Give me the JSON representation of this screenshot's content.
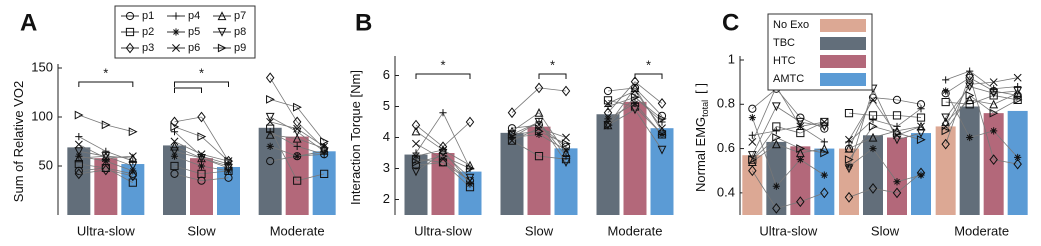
{
  "participants": [
    {
      "name": "p1",
      "marker": "o"
    },
    {
      "name": "p2",
      "marker": "s"
    },
    {
      "name": "p3",
      "marker": "d"
    },
    {
      "name": "p4",
      "marker": "+"
    },
    {
      "name": "p5",
      "marker": "*"
    },
    {
      "name": "p6",
      "marker": "x"
    },
    {
      "name": "p7",
      "marker": "^"
    },
    {
      "name": "p8",
      "marker": "v"
    },
    {
      "name": "p9",
      "marker": ">"
    }
  ],
  "chart_data": [
    {
      "type": "bar",
      "panel": "A",
      "ylabel": "Sum of Relative VO2",
      "categories": [
        "Ultra-slow",
        "Slow",
        "Moderate"
      ],
      "series": [
        {
          "color": "#626e7a",
          "values": [
            69,
            71,
            89
          ]
        },
        {
          "color": "#b3687a",
          "values": [
            58,
            58,
            80
          ]
        },
        {
          "color": "#5b9bd5",
          "values": [
            52,
            49,
            65
          ]
        }
      ],
      "points": [
        [
          45,
          48,
          42,
          42,
          35,
          38,
          55,
          60,
          62
        ],
        [
          52,
          48,
          33,
          50,
          42,
          45,
          88,
          35,
          42
        ],
        [
          42,
          46,
          40,
          95,
          100,
          55,
          140,
          95,
          68
        ],
        [
          80,
          65,
          55,
          85,
          60,
          52,
          85,
          70,
          62
        ],
        [
          60,
          55,
          45,
          60,
          50,
          45,
          70,
          60,
          65
        ],
        [
          72,
          58,
          60,
          75,
          62,
          55,
          95,
          88,
          70
        ],
        [
          58,
          60,
          58,
          70,
          58,
          50,
          82,
          78,
          68
        ],
        [
          65,
          60,
          50,
          65,
          58,
          48,
          100,
          85,
          65
        ],
        [
          102,
          92,
          85,
          90,
          80,
          55,
          118,
          110,
          75
        ]
      ],
      "ylim": [
        0,
        150
      ],
      "yticks": [
        50,
        100,
        150
      ],
      "significance": [
        {
          "group": 0,
          "from": 0,
          "to": 2,
          "label": "*"
        },
        {
          "group": 1,
          "from": 0,
          "to": 2,
          "label": "*"
        },
        {
          "group": 1,
          "from": 0,
          "to": 1
        }
      ]
    },
    {
      "type": "bar",
      "panel": "B",
      "ylabel": "Interaction Torque [Nm]",
      "categories": [
        "Ultra-slow",
        "Slow",
        "Moderate"
      ],
      "series": [
        {
          "color": "#626e7a",
          "values": [
            3.45,
            4.15,
            4.75
          ]
        },
        {
          "color": "#b3687a",
          "values": [
            3.5,
            4.35,
            5.15
          ]
        },
        {
          "color": "#5b9bd5",
          "values": [
            2.9,
            3.65,
            4.3
          ]
        }
      ],
      "points": [
        [
          3.1,
          3.2,
          2.6,
          4.3,
          4.4,
          3.7,
          5.5,
          5.6,
          4.7
        ],
        [
          3.3,
          3.2,
          2.4,
          3.9,
          3.4,
          3.3,
          5.2,
          5.0,
          4.1
        ],
        [
          4.4,
          3.7,
          4.5,
          4.8,
          5.6,
          5.5,
          4.8,
          5.8,
          5.1
        ],
        [
          3.5,
          4.8,
          3.0,
          4.0,
          4.5,
          3.4,
          5.0,
          5.3,
          4.5
        ],
        [
          3.4,
          3.6,
          2.5,
          4.0,
          4.1,
          3.6,
          4.6,
          5.1,
          4.1
        ],
        [
          3.8,
          3.3,
          2.6,
          3.9,
          4.3,
          4.0,
          5.1,
          5.5,
          4.3
        ],
        [
          4.2,
          3.6,
          3.1,
          4.2,
          4.8,
          3.5,
          4.4,
          5.6,
          4.2
        ],
        [
          2.9,
          3.5,
          2.7,
          4.1,
          4.5,
          3.2,
          4.4,
          4.9,
          3.6
        ],
        [
          3.2,
          3.4,
          3.0,
          4.1,
          4.2,
          3.8,
          4.4,
          5.3,
          4.6
        ]
      ],
      "ylim": [
        1.5,
        6.5
      ],
      "yticks": [
        2,
        3,
        4,
        5,
        6
      ],
      "significance": [
        {
          "group": 0,
          "from": 0,
          "to": 2,
          "label": "*"
        },
        {
          "group": 1,
          "from": 1,
          "to": 2,
          "label": "*"
        },
        {
          "group": 2,
          "from": 1,
          "to": 2,
          "label": "*"
        }
      ]
    },
    {
      "type": "bar",
      "panel": "C",
      "ylabel": "Normal EMG",
      "ylabel_sub": "total",
      "ylabel_unit": "[ ]",
      "categories": [
        "Ultra-slow",
        "Slow",
        "Moderate"
      ],
      "series": [
        {
          "name": "No Exo",
          "color": "#dca894",
          "values": [
            0.57,
            0.6,
            0.7
          ]
        },
        {
          "name": "TBC",
          "color": "#626e7a",
          "values": [
            0.63,
            0.66,
            0.79
          ]
        },
        {
          "name": "HTC",
          "color": "#b3687a",
          "values": [
            0.61,
            0.65,
            0.76
          ]
        },
        {
          "name": "AMTC",
          "color": "#5b9bd5",
          "values": [
            0.6,
            0.67,
            0.77
          ]
        }
      ],
      "points": [
        [
          0.78,
          0.87,
          0.74,
          0.69,
          0.6,
          0.83,
          0.82,
          0.8,
          0.85,
          0.92,
          0.86,
          0.84
        ],
        [
          0.55,
          0.7,
          0.67,
          0.72,
          0.76,
          0.75,
          0.75,
          0.74,
          0.81,
          0.8,
          0.84,
          0.82
        ],
        [
          0.5,
          0.33,
          0.36,
          0.4,
          0.38,
          0.42,
          0.4,
          0.49,
          0.62,
          0.93,
          0.55,
          0.53
        ],
        [
          0.66,
          0.68,
          0.7,
          0.63,
          0.63,
          0.73,
          0.7,
          0.78,
          0.91,
          0.95,
          0.87,
          0.88
        ],
        [
          0.74,
          0.43,
          0.55,
          0.48,
          0.52,
          0.6,
          0.45,
          0.48,
          0.86,
          0.65,
          0.68,
          0.56
        ],
        [
          0.63,
          0.88,
          0.7,
          0.72,
          0.64,
          0.82,
          0.66,
          0.7,
          0.7,
          0.89,
          0.9,
          0.92
        ],
        [
          0.54,
          0.62,
          0.58,
          0.6,
          0.6,
          0.65,
          0.68,
          0.7,
          0.72,
          0.82,
          0.8,
          0.85
        ],
        [
          0.57,
          0.79,
          0.72,
          0.7,
          0.51,
          0.87,
          0.64,
          0.67,
          0.74,
          0.88,
          0.85,
          0.86
        ],
        [
          0.55,
          0.65,
          0.6,
          0.58,
          0.55,
          0.7,
          0.67,
          0.64,
          0.68,
          0.84,
          0.76,
          0.82
        ]
      ],
      "ylim": [
        0.3,
        1.0
      ],
      "yticks": [
        0.4,
        0.6,
        0.8,
        1
      ],
      "significance": []
    }
  ]
}
